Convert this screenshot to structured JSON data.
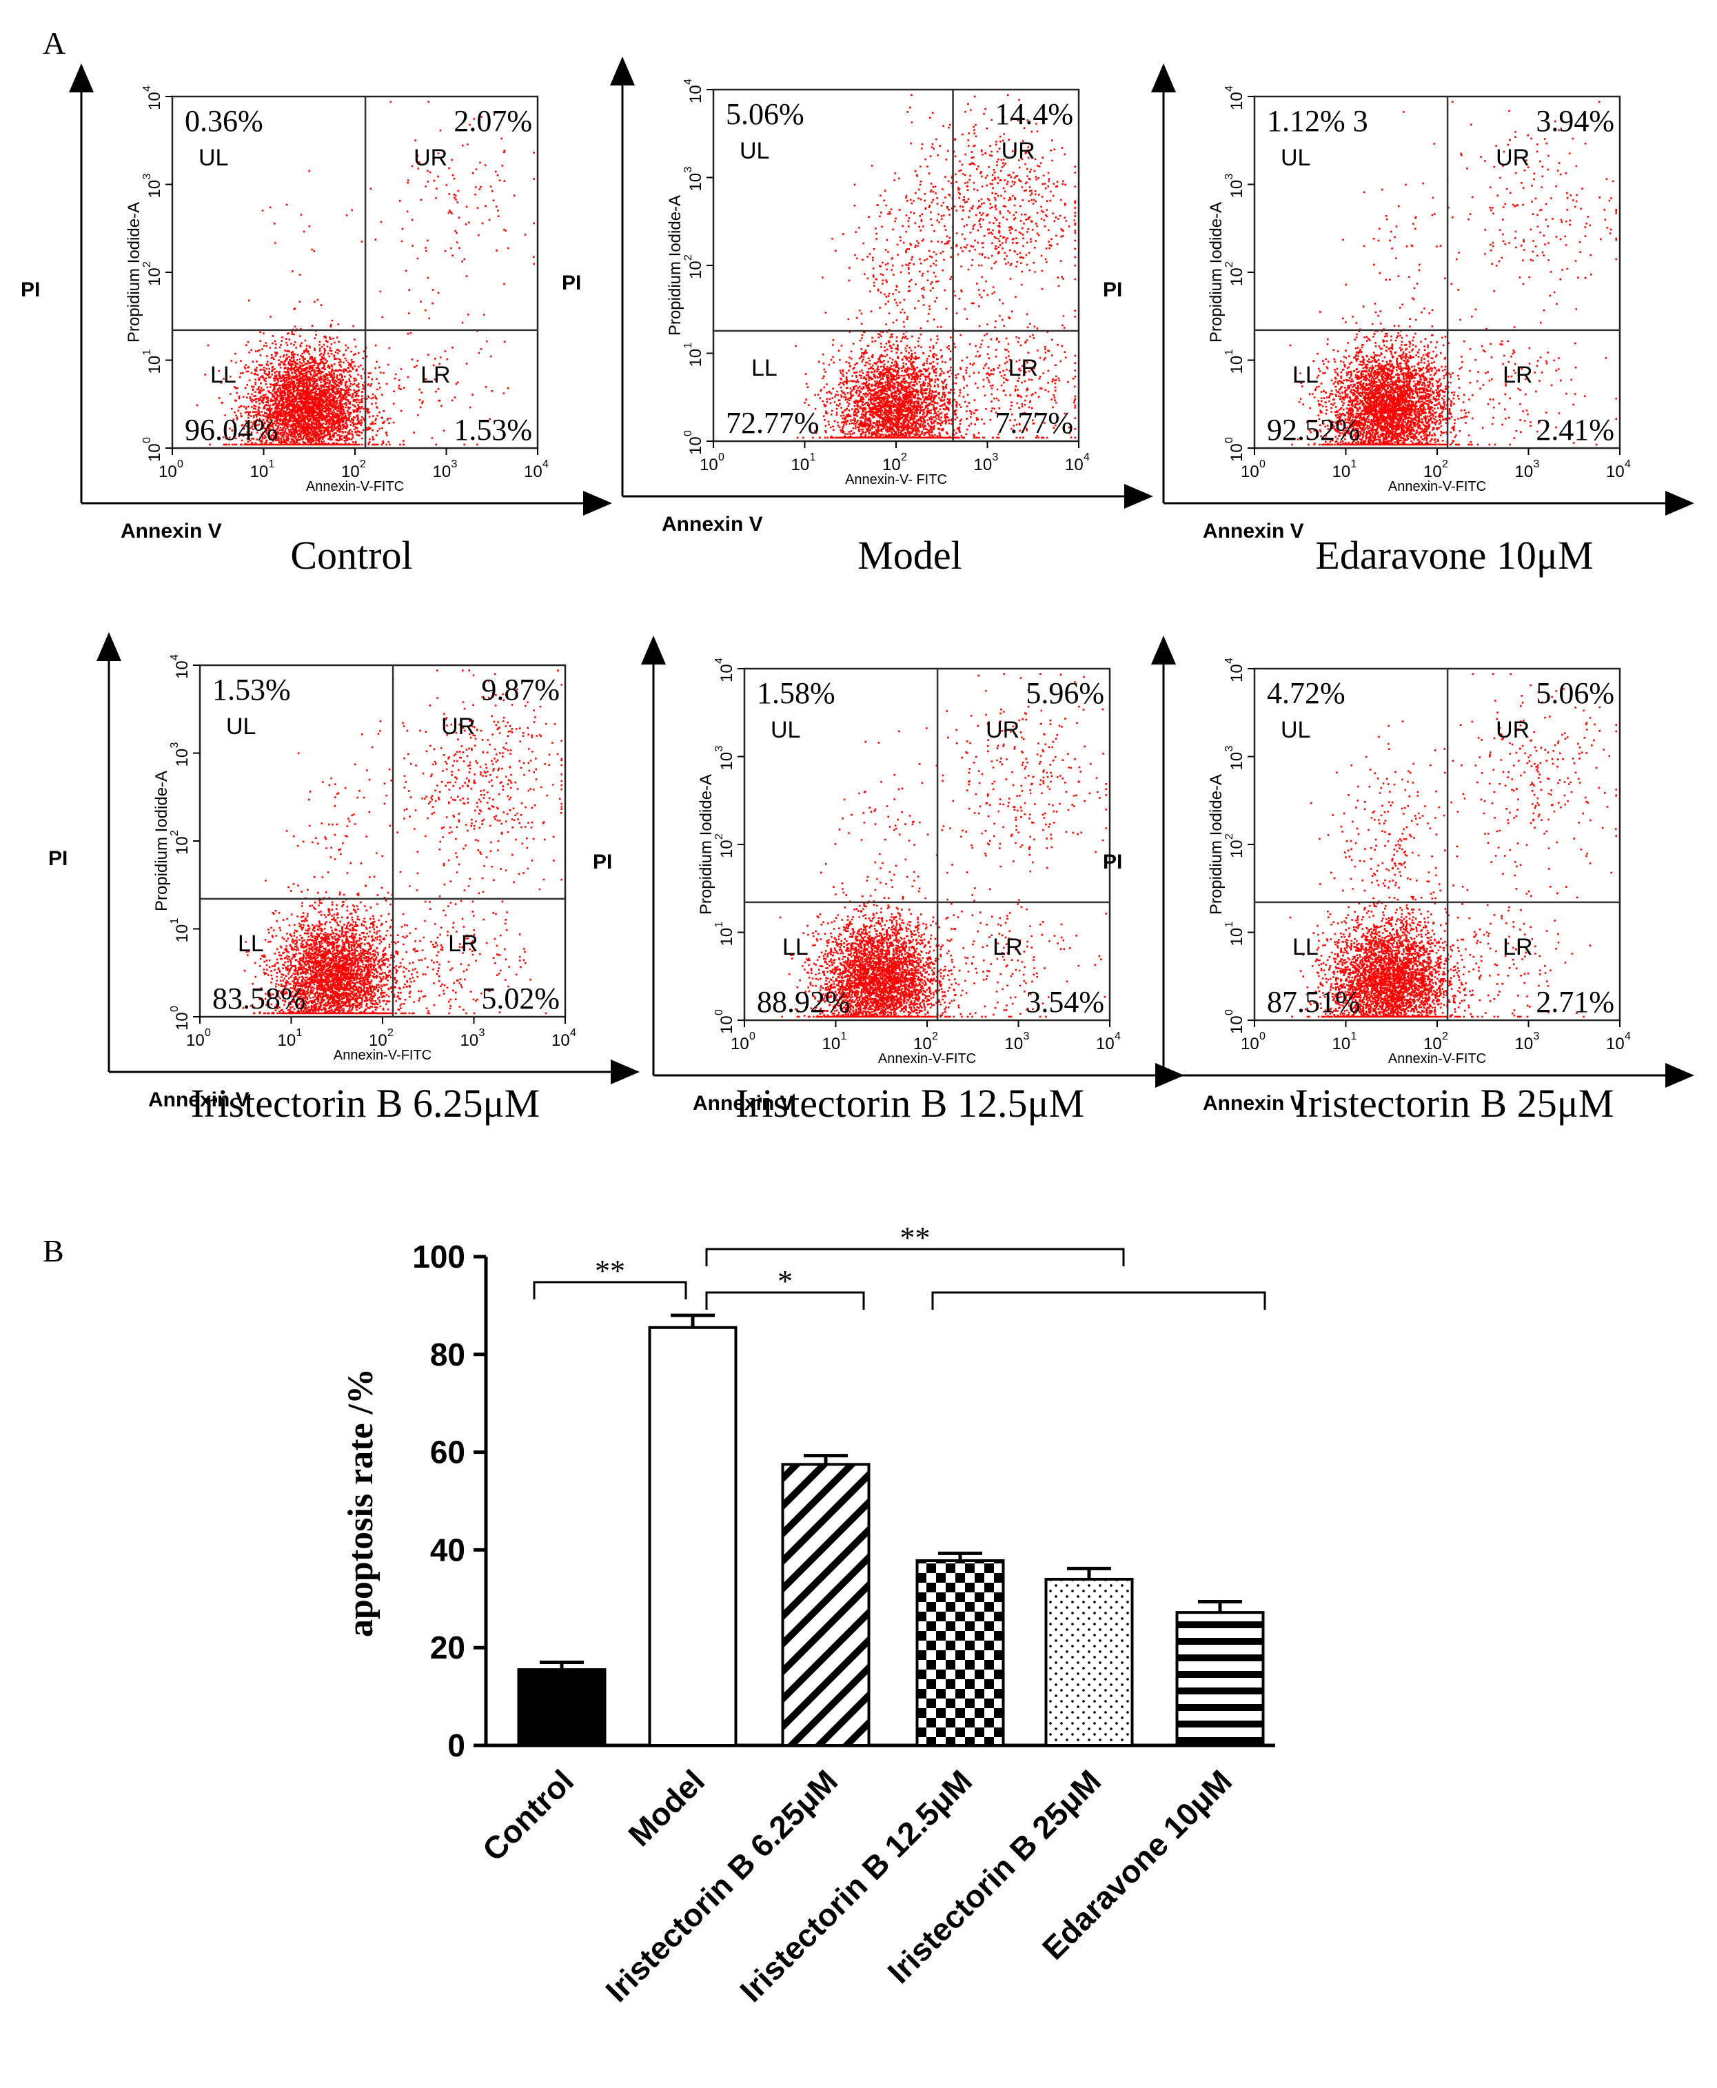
{
  "figure": {
    "panel_a_label": "A",
    "panel_b_label": "B"
  },
  "chart_data": [
    {
      "type": "scatter",
      "title": "Control",
      "xlabel": "Annexin V",
      "ylabel": "PI",
      "x_channel_label": "Annexin-V-FITC",
      "y_channel_label": "Propidium Iodide-A",
      "scale": "log",
      "xlim": [
        1,
        10000
      ],
      "ylim": [
        1,
        10000
      ],
      "x_ticks": [
        "10",
        "10",
        "10",
        "10",
        "10"
      ],
      "x_tick_exponents": [
        "0",
        "1",
        "2",
        "3",
        "4"
      ],
      "y_ticks": [
        "10",
        "10",
        "10",
        "10",
        "10"
      ],
      "y_tick_exponents": [
        "0",
        "1",
        "2",
        "3",
        "4"
      ],
      "gate_x": 130,
      "gate_y": 22,
      "quadrants": {
        "UL": {
          "label": "UL",
          "percent": "0.36%"
        },
        "UR": {
          "label": "UR",
          "percent": "2.07%"
        },
        "LL": {
          "label": "LL",
          "percent": "96.04%"
        },
        "LR": {
          "label": "LR",
          "percent": "1.53%"
        }
      },
      "point_color": "#ff0000"
    },
    {
      "type": "scatter",
      "title": "Model",
      "xlabel": "Annexin V",
      "ylabel": "PI",
      "x_channel_label": "Annexin-V- FITC",
      "y_channel_label": "Propidium Iodide-A",
      "scale": "log",
      "xlim": [
        1,
        10000
      ],
      "ylim": [
        1,
        10000
      ],
      "x_ticks": [
        "10",
        "10",
        "10",
        "10",
        "10"
      ],
      "x_tick_exponents": [
        "0",
        "1",
        "2",
        "3",
        "4"
      ],
      "y_ticks": [
        "10",
        "10",
        "10",
        "10",
        "10"
      ],
      "y_tick_exponents": [
        "0",
        "1",
        "2",
        "3",
        "4"
      ],
      "gate_x": 420,
      "gate_y": 18,
      "quadrants": {
        "UL": {
          "label": "UL",
          "percent": "5.06%"
        },
        "UR": {
          "label": "UR",
          "percent": "14.4%"
        },
        "LL": {
          "label": "LL",
          "percent": "72.77%"
        },
        "LR": {
          "label": "LR",
          "percent": "7.77%"
        }
      },
      "point_color": "#ff0000"
    },
    {
      "type": "scatter",
      "title": "Edaravone 10μM",
      "xlabel": "Annexin V",
      "ylabel": "PI",
      "x_channel_label": "Annexin-V-FITC",
      "y_channel_label": "Propidium Iodide-A",
      "scale": "log",
      "xlim": [
        1,
        10000
      ],
      "ylim": [
        1,
        10000
      ],
      "x_ticks": [
        "10",
        "10",
        "10",
        "10",
        "10"
      ],
      "x_tick_exponents": [
        "0",
        "1",
        "2",
        "3",
        "4"
      ],
      "y_ticks": [
        "10",
        "10",
        "10",
        "10",
        "10"
      ],
      "y_tick_exponents": [
        "0",
        "1",
        "2",
        "3",
        "4"
      ],
      "gate_x": 130,
      "gate_y": 22,
      "quadrants": {
        "UL": {
          "label": "UL",
          "percent": "1.12% 3"
        },
        "UR": {
          "label": "UR",
          "percent": "3.94%"
        },
        "LL": {
          "label": "LL",
          "percent": "92.52%"
        },
        "LR": {
          "label": "LR",
          "percent": "2.41%"
        }
      },
      "point_color": "#ff0000"
    },
    {
      "type": "scatter",
      "title": "Iristectorin B 6.25μM",
      "xlabel": "Annexin V",
      "ylabel": "PI",
      "x_channel_label": "Annexin-V-FITC",
      "y_channel_label": "Propidium Iodide-A",
      "scale": "log",
      "xlim": [
        1,
        10000
      ],
      "ylim": [
        1,
        10000
      ],
      "x_ticks": [
        "10",
        "10",
        "10",
        "10",
        "10"
      ],
      "x_tick_exponents": [
        "0",
        "1",
        "2",
        "3",
        "4"
      ],
      "y_ticks": [
        "10",
        "10",
        "10",
        "10",
        "10"
      ],
      "y_tick_exponents": [
        "0",
        "1",
        "2",
        "3",
        "4"
      ],
      "gate_x": 130,
      "gate_y": 22,
      "quadrants": {
        "UL": {
          "label": "UL",
          "percent": "1.53%"
        },
        "UR": {
          "label": "UR",
          "percent": "9.87%"
        },
        "LL": {
          "label": "LL",
          "percent": "83.58%"
        },
        "LR": {
          "label": "LR",
          "percent": "5.02%"
        }
      },
      "point_color": "#ff0000"
    },
    {
      "type": "scatter",
      "title": "Iristectorin B 12.5μM",
      "xlabel": "Annexin V",
      "ylabel": "PI",
      "x_channel_label": "Annexin-V-FITC",
      "y_channel_label": "Propidium Iodide-A",
      "scale": "log",
      "xlim": [
        1,
        10000
      ],
      "ylim": [
        1,
        10000
      ],
      "x_ticks": [
        "10",
        "10",
        "10",
        "10",
        "10"
      ],
      "x_tick_exponents": [
        "0",
        "1",
        "2",
        "3",
        "4"
      ],
      "y_ticks": [
        "10",
        "10",
        "10",
        "10",
        "10"
      ],
      "y_tick_exponents": [
        "0",
        "1",
        "2",
        "3",
        "4"
      ],
      "gate_x": 130,
      "gate_y": 22,
      "quadrants": {
        "UL": {
          "label": "UL",
          "percent": "1.58%"
        },
        "UR": {
          "label": "UR",
          "percent": "5.96%"
        },
        "LL": {
          "label": "LL",
          "percent": "88.92%"
        },
        "LR": {
          "label": "LR",
          "percent": "3.54%"
        }
      },
      "point_color": "#ff0000"
    },
    {
      "type": "scatter",
      "title": "Iristectorin B 25μM",
      "xlabel": "Annexin V",
      "ylabel": "PI",
      "x_channel_label": "Annexin-V-FITC",
      "y_channel_label": "Propidium Iodide-A",
      "scale": "log",
      "xlim": [
        1,
        10000
      ],
      "ylim": [
        1,
        10000
      ],
      "x_ticks": [
        "10",
        "10",
        "10",
        "10",
        "10"
      ],
      "x_tick_exponents": [
        "0",
        "1",
        "2",
        "3",
        "4"
      ],
      "y_ticks": [
        "10",
        "10",
        "10",
        "10",
        "10"
      ],
      "y_tick_exponents": [
        "0",
        "1",
        "2",
        "3",
        "4"
      ],
      "gate_x": 130,
      "gate_y": 22,
      "quadrants": {
        "UL": {
          "label": "UL",
          "percent": "4.72%"
        },
        "UR": {
          "label": "UR",
          "percent": "5.06%"
        },
        "LL": {
          "label": "LL",
          "percent": "87.51%"
        },
        "LR": {
          "label": "LR",
          "percent": "2.71%"
        }
      },
      "point_color": "#ff0000"
    },
    {
      "type": "bar",
      "title": "",
      "xlabel": "",
      "ylabel": "apoptosis rate /%",
      "ylim": [
        0,
        100
      ],
      "y_ticks": [
        0,
        20,
        40,
        60,
        80,
        100
      ],
      "categories": [
        "Control",
        "Model",
        "Iristectorin B 6.25μM",
        "Iristectorin B 12.5μM",
        "Iristectorin B 25μM",
        "Edaravone 10μM"
      ],
      "values": [
        15.5,
        85.5,
        57.5,
        37.8,
        34,
        27.2
      ],
      "errors": [
        1.5,
        2.5,
        1.8,
        1.5,
        2.2,
        2.2
      ],
      "fills": [
        "solid-black",
        "white",
        "diagonal-stripes",
        "checkerboard",
        "dots",
        "horizontal-stripes"
      ],
      "significance": [
        {
          "from": 0,
          "to": 1,
          "label": "**"
        },
        {
          "from": 1,
          "to": 2,
          "label": "*"
        },
        {
          "from": 1,
          "to": 4,
          "label": "**"
        },
        {
          "from": 3,
          "to": 5,
          "label": ""
        }
      ]
    }
  ]
}
